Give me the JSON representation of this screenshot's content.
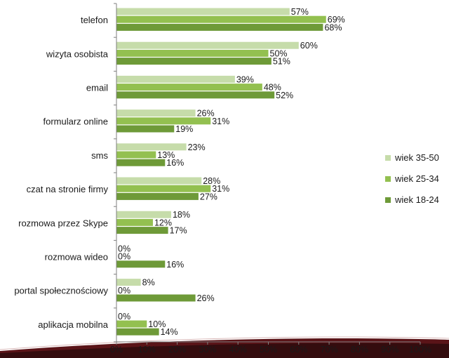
{
  "chart_data": {
    "type": "bar",
    "orientation": "horizontal",
    "categories": [
      "telefon",
      "wizyta osobista",
      "email",
      "formularz online",
      "sms",
      "czat na stronie firmy",
      "rozmowa przez Skype",
      "rozmowa wideo",
      "portal społecznościowy",
      "aplikacja mobilna"
    ],
    "series": [
      {
        "name": "wiek 35-50",
        "color": "#c6dcaa",
        "values": [
          57,
          60,
          39,
          26,
          23,
          28,
          18,
          0,
          8,
          0
        ]
      },
      {
        "name": "wiek 25-34",
        "color": "#93c050",
        "values": [
          69,
          50,
          48,
          31,
          13,
          31,
          12,
          0,
          0,
          10
        ]
      },
      {
        "name": "wiek 18-24",
        "color": "#6e9a38",
        "values": [
          68,
          51,
          52,
          19,
          16,
          27,
          17,
          16,
          26,
          14
        ]
      }
    ],
    "xlim": [
      0,
      100
    ],
    "xticks": [
      "0%",
      "10%",
      "20%",
      "30%",
      "40%",
      "50%",
      "60%",
      "70%",
      "80%",
      "90%",
      "100%"
    ],
    "value_suffix": "%",
    "legend_position": "right",
    "grid": false
  }
}
